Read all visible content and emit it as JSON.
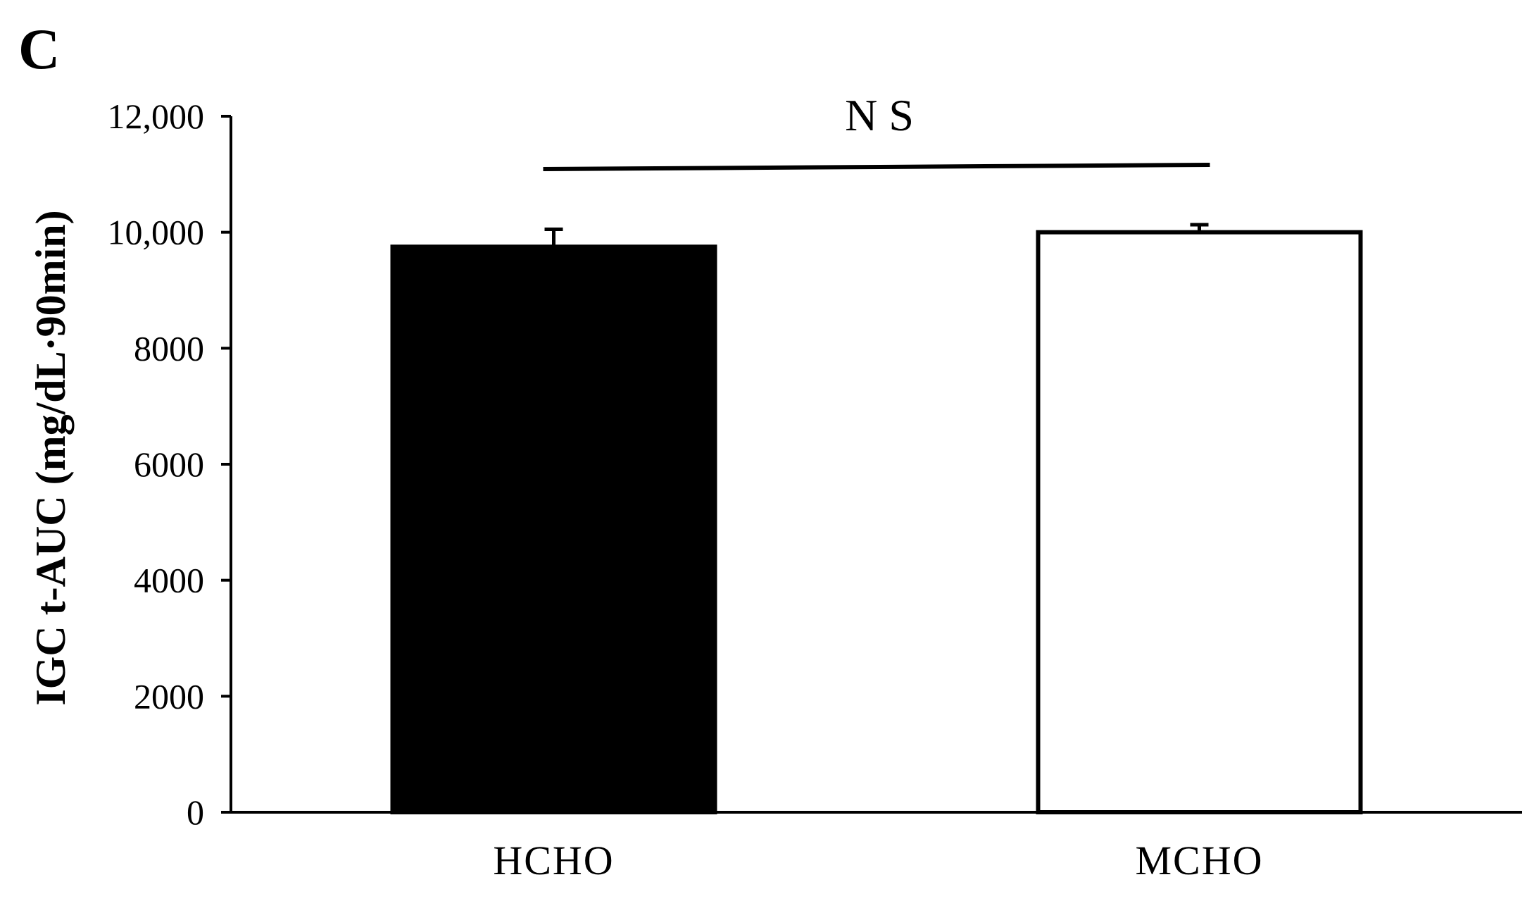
{
  "panel_label": "C",
  "chart_data": {
    "type": "bar",
    "title": "",
    "xlabel": "",
    "ylabel": "IGC t-AUC (mg/dL·90min)",
    "ylim": [
      0,
      12000
    ],
    "yticks": [
      0,
      2000,
      4000,
      6000,
      8000,
      10000,
      12000
    ],
    "ytick_labels": [
      "0",
      "2000",
      "4000",
      "6000",
      "8000",
      "10,000",
      "12,000"
    ],
    "categories": [
      "HCHO",
      "MCHO"
    ],
    "values": [
      9750,
      10000
    ],
    "error_plus": [
      300,
      130
    ],
    "bar_fill": [
      "#000000",
      "#ffffff"
    ],
    "bar_stroke": "#000000",
    "grid": false,
    "legend": "none",
    "annotation": {
      "text": "N S",
      "spans": [
        "HCHO",
        "MCHO"
      ]
    }
  }
}
